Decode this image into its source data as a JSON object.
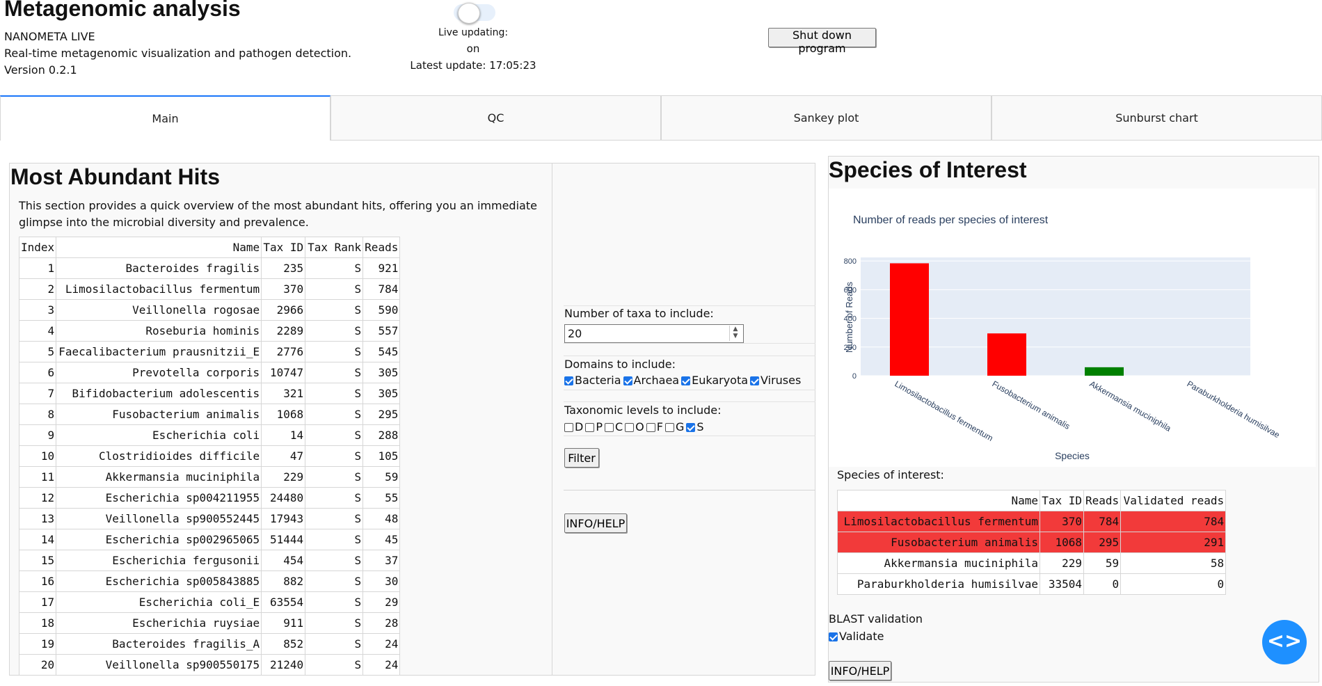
{
  "header": {
    "title": "Metagenomic analysis",
    "app_name": "NANOMETA LIVE",
    "subtitle": "Real-time metagenomic visualization and pathogen detection.",
    "version": "Version 0.2.1",
    "live_label": "Live updating:",
    "live_state": "on",
    "latest_update": "Latest update: 17:05:23",
    "shutdown_label": "Shut down program"
  },
  "tabs": [
    {
      "label": "Main",
      "active": true
    },
    {
      "label": "QC",
      "active": false
    },
    {
      "label": "Sankey plot",
      "active": false
    },
    {
      "label": "Sunburst chart",
      "active": false
    }
  ],
  "hits": {
    "heading": "Most Abundant Hits",
    "description": "This section provides a quick overview of the most abundant hits, offering you an immediate glimpse into the microbial diversity and prevalence.",
    "columns": [
      "Index",
      "Name",
      "Tax ID",
      "Tax Rank",
      "Reads"
    ],
    "rows": [
      [
        "1",
        "Bacteroides fragilis",
        "235",
        "S",
        "921"
      ],
      [
        "2",
        "Limosilactobacillus fermentum",
        "370",
        "S",
        "784"
      ],
      [
        "3",
        "Veillonella rogosae",
        "2966",
        "S",
        "590"
      ],
      [
        "4",
        "Roseburia hominis",
        "2289",
        "S",
        "557"
      ],
      [
        "5",
        "Faecalibacterium prausnitzii_E",
        "2776",
        "S",
        "545"
      ],
      [
        "6",
        "Prevotella corporis",
        "10747",
        "S",
        "305"
      ],
      [
        "7",
        "Bifidobacterium adolescentis",
        "321",
        "S",
        "305"
      ],
      [
        "8",
        "Fusobacterium animalis",
        "1068",
        "S",
        "295"
      ],
      [
        "9",
        "Escherichia coli",
        "14",
        "S",
        "288"
      ],
      [
        "10",
        "Clostridioides difficile",
        "47",
        "S",
        "105"
      ],
      [
        "11",
        "Akkermansia muciniphila",
        "229",
        "S",
        "59"
      ],
      [
        "12",
        "Escherichia sp004211955",
        "24480",
        "S",
        "55"
      ],
      [
        "13",
        "Veillonella sp900552445",
        "17943",
        "S",
        "48"
      ],
      [
        "14",
        "Escherichia sp002965065",
        "51444",
        "S",
        "45"
      ],
      [
        "15",
        "Escherichia fergusonii",
        "454",
        "S",
        "37"
      ],
      [
        "16",
        "Escherichia sp005843885",
        "882",
        "S",
        "30"
      ],
      [
        "17",
        "Escherichia coli_E",
        "63554",
        "S",
        "29"
      ],
      [
        "18",
        "Escherichia ruysiae",
        "911",
        "S",
        "28"
      ],
      [
        "19",
        "Bacteroides fragilis_A",
        "852",
        "S",
        "24"
      ],
      [
        "20",
        "Veillonella sp900550175",
        "21240",
        "S",
        "24"
      ]
    ]
  },
  "filters": {
    "taxa_label": "Number of taxa to include:",
    "taxa_value": "20",
    "domains_label": "Domains to include:",
    "domains": [
      {
        "label": "Bacteria",
        "checked": true
      },
      {
        "label": "Archaea",
        "checked": true
      },
      {
        "label": "Eukaryota",
        "checked": true
      },
      {
        "label": "Viruses",
        "checked": true
      }
    ],
    "levels_label": "Taxonomic levels to include:",
    "levels": [
      {
        "label": "D",
        "checked": false
      },
      {
        "label": "P",
        "checked": false
      },
      {
        "label": "C",
        "checked": false
      },
      {
        "label": "O",
        "checked": false
      },
      {
        "label": "F",
        "checked": false
      },
      {
        "label": "G",
        "checked": false
      },
      {
        "label": "S",
        "checked": true
      }
    ],
    "filter_label": "Filter",
    "info_label": "INFO/HELP"
  },
  "species": {
    "heading": "Species of Interest",
    "table_label": "Species of interest:",
    "columns": [
      "Name",
      "Tax ID",
      "Reads",
      "Validated reads"
    ],
    "rows": [
      {
        "cells": [
          "Limosilactobacillus fermentum",
          "370",
          "784",
          "784"
        ],
        "highlight": true
      },
      {
        "cells": [
          "Fusobacterium animalis",
          "1068",
          "295",
          "291"
        ],
        "highlight": true
      },
      {
        "cells": [
          "Akkermansia muciniphila",
          "229",
          "59",
          "58"
        ],
        "highlight": false
      },
      {
        "cells": [
          "Paraburkholderia humisilvae",
          "33504",
          "0",
          "0"
        ],
        "highlight": false
      }
    ],
    "blast_label": "BLAST validation",
    "validate_label": "Validate",
    "validate_checked": true,
    "info_label": "INFO/HELP"
  },
  "fab_icon": "code-icon",
  "fab_glyph": "<>",
  "chart_data": {
    "type": "bar",
    "title": "Number of reads per species of interest",
    "xlabel": "Species",
    "ylabel": "Number of Reads",
    "categories": [
      "Limosilactobacillus fermentum",
      "Fusobacterium animalis",
      "Akkermansia muciniphila",
      "Paraburkholderia humisilvae"
    ],
    "values": [
      784,
      295,
      59,
      0
    ],
    "colors": [
      "#ff0000",
      "#ff0000",
      "#008000",
      "#ff0000"
    ],
    "ylim": [
      0,
      825
    ],
    "yticks": [
      0,
      200,
      400,
      600,
      800
    ],
    "grid": true,
    "plot_bg": "#e5ecf6"
  }
}
